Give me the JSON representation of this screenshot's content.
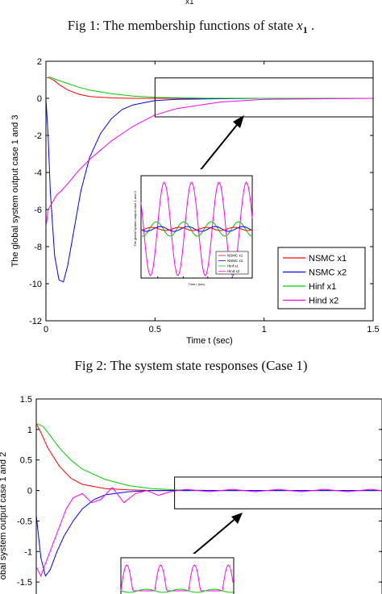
{
  "top_fragment": "x1",
  "fig1_caption": {
    "text": "Fig 1: The membership functions of state ",
    "var": "x",
    "sub": "1",
    "end": " ."
  },
  "fig2_caption": "Fig 2: The system state responses (Case 1)",
  "colors": {
    "nsmc_x1": "#ff0000",
    "nsmc_x2": "#0000ff",
    "hinf_x1": "#00cc00",
    "hind_x2": "#ff00ff",
    "axis": "#000000"
  },
  "chart_data": [
    {
      "type": "line",
      "title": "",
      "xlabel": "Time t (sec)",
      "ylabel": "The global system output case 1 and 3",
      "xlim": [
        0,
        1.5
      ],
      "ylim": [
        -12,
        2
      ],
      "xticks": [
        "0",
        "0.5",
        "1",
        "1.5"
      ],
      "yticks": [
        "2",
        "0",
        "-2",
        "-4",
        "-6",
        "-8",
        "-10",
        "-12"
      ],
      "legend_position": "bottom-right",
      "series": [
        {
          "name": "NSMC x1",
          "color_key": "nsmc_x1",
          "x": [
            0,
            0.01,
            0.02,
            0.04,
            0.06,
            0.1,
            0.15,
            0.2,
            0.3,
            0.4,
            0.5,
            0.7,
            1.0,
            1.5
          ],
          "y": [
            1.1,
            1.12,
            1.08,
            0.95,
            0.75,
            0.45,
            0.22,
            0.1,
            0.02,
            0.0,
            0.0,
            0.0,
            0.0,
            0.0
          ]
        },
        {
          "name": "NSMC x2",
          "color_key": "nsmc_x2",
          "x": [
            0,
            0.01,
            0.02,
            0.04,
            0.06,
            0.08,
            0.1,
            0.13,
            0.16,
            0.2,
            0.25,
            0.3,
            0.35,
            0.4,
            0.5,
            0.6,
            0.8,
            1.0,
            1.5
          ],
          "y": [
            0,
            -2.0,
            -5.0,
            -8.5,
            -9.8,
            -9.9,
            -9.0,
            -7.0,
            -5.0,
            -3.2,
            -1.9,
            -1.1,
            -0.6,
            -0.35,
            -0.12,
            -0.05,
            -0.02,
            0.0,
            0.0
          ]
        },
        {
          "name": "Hinf x1",
          "color_key": "hinf_x1",
          "x": [
            0,
            0.02,
            0.05,
            0.1,
            0.15,
            0.2,
            0.3,
            0.4,
            0.5,
            0.7,
            1.0,
            1.5
          ],
          "y": [
            1.1,
            1.15,
            1.0,
            0.8,
            0.6,
            0.45,
            0.25,
            0.12,
            0.05,
            0.01,
            0.0,
            0.0
          ]
        },
        {
          "name": "Hind x2",
          "color_key": "hind_x2",
          "x": [
            0,
            0.01,
            0.02,
            0.035,
            0.05,
            0.07,
            0.1,
            0.15,
            0.2,
            0.3,
            0.4,
            0.5,
            0.6,
            0.8,
            1.0,
            1.5
          ],
          "y": [
            -7.0,
            -6.0,
            -5.8,
            -5.5,
            -5.2,
            -5.0,
            -4.6,
            -3.9,
            -3.3,
            -2.3,
            -1.5,
            -0.9,
            -0.55,
            -0.2,
            -0.05,
            0.0
          ]
        }
      ],
      "annotation_box": {
        "x": [
          0.5,
          1.5
        ],
        "y": [
          -1.0,
          1.1
        ]
      },
      "inset": {
        "ylabel": "The global system output case 1 and 3",
        "xlabel": "Time t (sec)",
        "legend": [
          "NSMC x1",
          "NSMC x2",
          "Hinf x1",
          "Hind x2"
        ]
      }
    },
    {
      "type": "line",
      "title": "",
      "xlabel": "",
      "ylabel": "obal system output case 1 and 2",
      "xlim": [
        0,
        1.5
      ],
      "ylim": [
        -2,
        1.5
      ],
      "yticks": [
        "1.5",
        "1",
        "0.5",
        "0",
        "-0.5",
        "-1",
        "-1.5"
      ],
      "series": [
        {
          "name": "",
          "color_key": "nsmc_x1",
          "x": [
            0,
            0.02,
            0.05,
            0.1,
            0.15,
            0.2,
            0.3,
            0.4,
            0.5,
            0.7,
            1.0,
            1.5
          ],
          "y": [
            1.1,
            0.95,
            0.7,
            0.4,
            0.2,
            0.1,
            0.03,
            0.01,
            0.0,
            0.0,
            0.0,
            0.0
          ]
        },
        {
          "name": "",
          "color_key": "hinf_x1",
          "x": [
            0,
            0.03,
            0.06,
            0.1,
            0.15,
            0.2,
            0.3,
            0.4,
            0.5,
            0.6,
            0.8,
            1.0,
            1.5
          ],
          "y": [
            1.1,
            1.05,
            0.9,
            0.7,
            0.5,
            0.35,
            0.18,
            0.08,
            0.03,
            0.01,
            0.0,
            0.0,
            0.0
          ]
        },
        {
          "name": "",
          "color_key": "nsmc_x2",
          "x": [
            0,
            0.02,
            0.04,
            0.06,
            0.09,
            0.12,
            0.16,
            0.2,
            0.25,
            0.3,
            0.4,
            0.5,
            0.6,
            0.8,
            1.0,
            1.5
          ],
          "y": [
            -0.4,
            -1.1,
            -1.4,
            -1.3,
            -1.0,
            -0.75,
            -0.5,
            -0.3,
            -0.15,
            -0.07,
            -0.02,
            0.0,
            0.0,
            0.0,
            0.0,
            0.0
          ]
        },
        {
          "name": "",
          "color_key": "hind_x2",
          "x": [
            0,
            0.02,
            0.04,
            0.07,
            0.1,
            0.13,
            0.16,
            0.2,
            0.24,
            0.28,
            0.33,
            0.38,
            0.43,
            0.48,
            0.53,
            0.58,
            0.65,
            0.75,
            0.85,
            0.95,
            1.05,
            1.15,
            1.25,
            1.35,
            1.45,
            1.5
          ],
          "y": [
            -1.25,
            -1.4,
            -1.2,
            -0.9,
            -0.6,
            -0.3,
            -0.12,
            -0.05,
            -0.2,
            -0.15,
            0.05,
            -0.2,
            -0.05,
            0.0,
            -0.08,
            -0.02,
            0.02,
            -0.02,
            0.02,
            -0.02,
            0.02,
            -0.02,
            0.02,
            -0.02,
            0.02,
            0.0
          ]
        }
      ],
      "annotation_box": {
        "x": [
          0.6,
          1.5
        ],
        "y": [
          -0.3,
          0.22
        ]
      }
    }
  ]
}
